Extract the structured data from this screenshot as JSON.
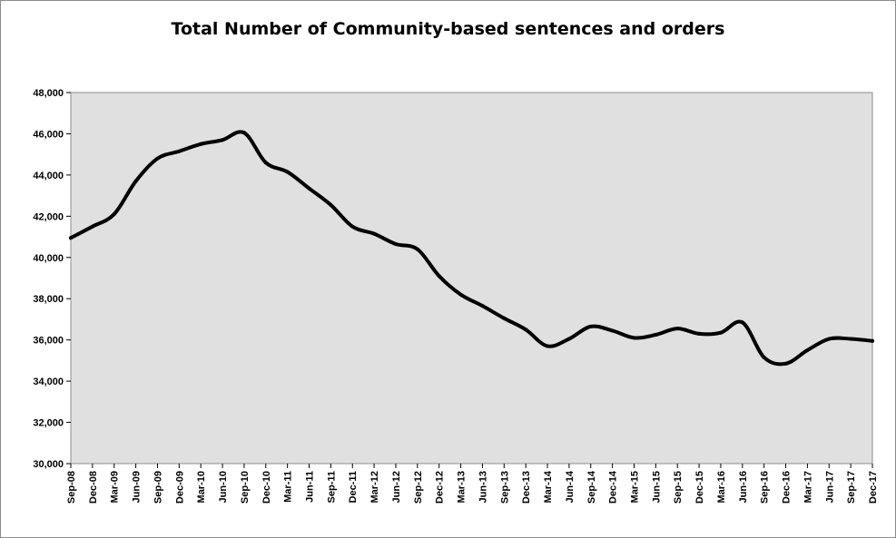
{
  "chart_data": {
    "type": "line",
    "title": "Total Number of Community-based sentences and orders",
    "xlabel": "",
    "ylabel": "",
    "ylim": [
      30000,
      48000
    ],
    "yticks": [
      30000,
      32000,
      34000,
      36000,
      38000,
      40000,
      42000,
      44000,
      46000,
      48000
    ],
    "ytick_labels": [
      "30,000",
      "32,000",
      "34,000",
      "36,000",
      "38,000",
      "40,000",
      "42,000",
      "44,000",
      "46,000",
      "48,000"
    ],
    "grid": false,
    "legend": "none",
    "plot_background": "#e0e0e0",
    "line_color": "#000000",
    "categories": [
      "Sep-08",
      "Dec-08",
      "Mar-09",
      "Jun-09",
      "Sep-09",
      "Dec-09",
      "Mar-10",
      "Jun-10",
      "Sep-10",
      "Dec-10",
      "Mar-11",
      "Jun-11",
      "Sep-11",
      "Dec-11",
      "Mar-12",
      "Jun-12",
      "Sep-12",
      "Dec-12",
      "Mar-13",
      "Jun-13",
      "Sep-13",
      "Dec-13",
      "Mar-14",
      "Jun-14",
      "Sep-14",
      "Dec-14",
      "Mar-15",
      "Jun-15",
      "Sep-15",
      "Dec-15",
      "Mar-16",
      "Jun-16",
      "Sep-16",
      "Dec-16",
      "Mar-17",
      "Jun-17",
      "Sep-17",
      "Dec-17"
    ],
    "series": [
      {
        "values": [
          40950,
          41500,
          42100,
          43700,
          44800,
          45150,
          45500,
          45700,
          46050,
          44600,
          44150,
          43350,
          42550,
          41500,
          41150,
          40650,
          40400,
          39100,
          38200,
          37650,
          37050,
          36500,
          35700,
          36050,
          36650,
          36450,
          36100,
          36250,
          36550,
          36300,
          36350,
          36850,
          35150,
          34850,
          35500,
          36050,
          36050,
          35950
        ]
      }
    ]
  }
}
